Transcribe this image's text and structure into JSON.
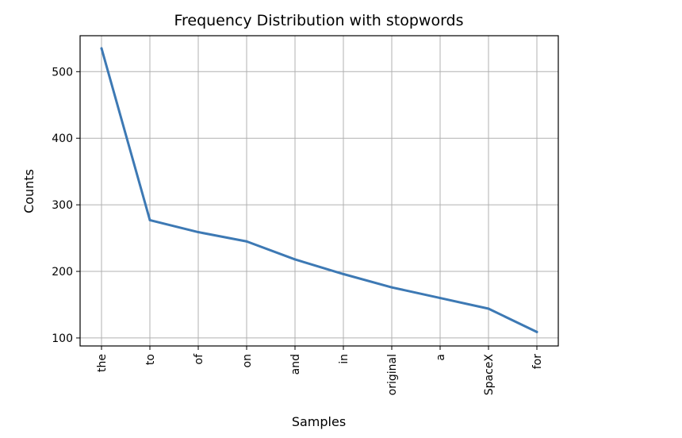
{
  "chart_data": {
    "type": "line",
    "title": "Frequency Distribution with stopwords",
    "xlabel": "Samples",
    "ylabel": "Counts",
    "categories": [
      "the",
      "to",
      "of",
      "on",
      "and",
      "in",
      "original",
      "a",
      "SpaceX",
      "for"
    ],
    "series": [
      {
        "values": [
          535,
          277,
          259,
          245,
          218,
          196,
          176,
          160,
          144,
          109
        ]
      }
    ],
    "yticks": [
      100,
      200,
      300,
      400,
      500
    ],
    "ylim": [
      88,
      554
    ],
    "grid": true,
    "line_color": "#3d79b4"
  }
}
